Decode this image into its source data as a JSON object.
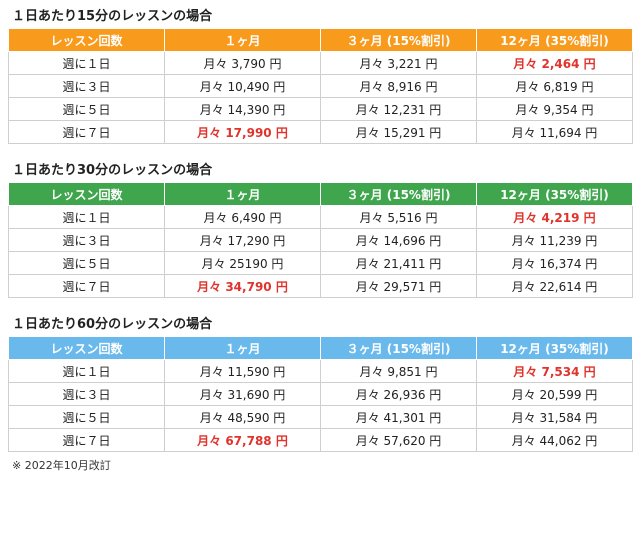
{
  "colors": {
    "orange": "#f89a1c",
    "green": "#3fa64d",
    "blue": "#69b9ec",
    "highlight": "#e0332b"
  },
  "headers": [
    "レッスン回数",
    "１ヶ月",
    "３ヶ月 (15%割引)",
    "12ヶ月 (35%割引)"
  ],
  "tables": [
    {
      "title": "１日あたり15分のレッスンの場合",
      "rows": [
        {
          "label": "週に１日",
          "m1": "月々 3,790 円",
          "m3": "月々 3,221 円",
          "m12": "月々 2,464 円"
        },
        {
          "label": "週に３日",
          "m1": "月々 10,490 円",
          "m3": "月々 8,916 円",
          "m12": "月々 6,819 円"
        },
        {
          "label": "週に５日",
          "m1": "月々 14,390 円",
          "m3": "月々 12,231 円",
          "m12": "月々 9,354 円"
        },
        {
          "label": "週に７日",
          "m1": "月々 17,990 円",
          "m3": "月々 15,291 円",
          "m12": "月々 11,694 円"
        }
      ]
    },
    {
      "title": "１日あたり30分のレッスンの場合",
      "rows": [
        {
          "label": "週に１日",
          "m1": "月々 6,490 円",
          "m3": "月々 5,516 円",
          "m12": "月々 4,219 円"
        },
        {
          "label": "週に３日",
          "m1": "月々 17,290 円",
          "m3": "月々 14,696 円",
          "m12": "月々 11,239 円"
        },
        {
          "label": "週に５日",
          "m1": "月々 25190 円",
          "m3": "月々 21,411 円",
          "m12": "月々 16,374 円"
        },
        {
          "label": "週に７日",
          "m1": "月々 34,790 円",
          "m3": "月々 29,571 円",
          "m12": "月々 22,614 円"
        }
      ]
    },
    {
      "title": "１日あたり60分のレッスンの場合",
      "rows": [
        {
          "label": "週に１日",
          "m1": "月々 11,590 円",
          "m3": "月々 9,851 円",
          "m12": "月々 7,534 円"
        },
        {
          "label": "週に３日",
          "m1": "月々 31,690 円",
          "m3": "月々 26,936 円",
          "m12": "月々 20,599 円"
        },
        {
          "label": "週に５日",
          "m1": "月々 48,590 円",
          "m3": "月々 41,301 円",
          "m12": "月々 31,584 円"
        },
        {
          "label": "週に７日",
          "m1": "月々 67,788 円",
          "m3": "月々 57,620 円",
          "m12": "月々 44,062 円"
        }
      ]
    }
  ],
  "note": "※ 2022年10月改訂"
}
